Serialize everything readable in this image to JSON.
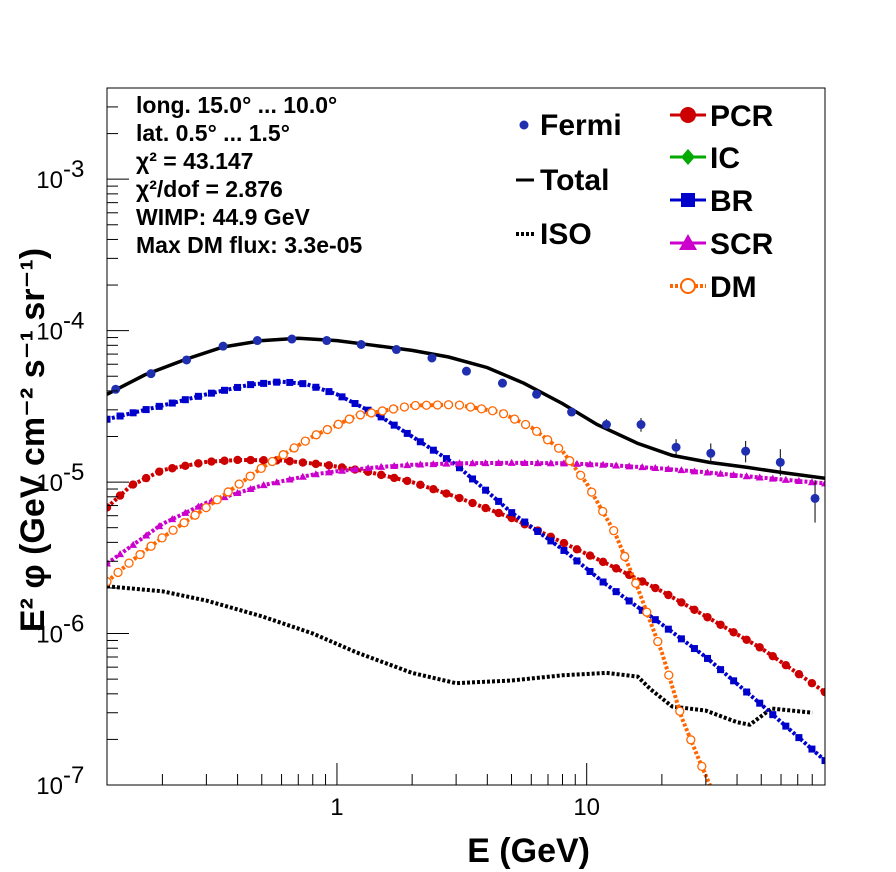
{
  "chart_data": {
    "type": "line",
    "xlabel": "E (GeV)",
    "ylabel": "E² φ (GeV cm⁻² s⁻¹ sr⁻¹)",
    "xscale": "log",
    "yscale": "log",
    "xlim": [
      0.12,
      90
    ],
    "ylim": [
      1e-07,
      0.004
    ],
    "x_tick_labels": [
      {
        "value": 1,
        "label": "1"
      },
      {
        "value": 10,
        "label": "10"
      }
    ],
    "y_tick_labels": [
      {
        "value": 1e-07,
        "base": "10",
        "exp": "-7"
      },
      {
        "value": 1e-06,
        "base": "10",
        "exp": "-6"
      },
      {
        "value": 1e-05,
        "base": "10",
        "exp": "-5"
      },
      {
        "value": 0.0001,
        "base": "10",
        "exp": "-4"
      },
      {
        "value": 0.001,
        "base": "10",
        "exp": "-3"
      }
    ],
    "info_lines": [
      "long. 15.0° ... 10.0°",
      "lat. 0.5° ... 1.5°",
      "χ² = 43.147",
      "χ²/dof = 2.876",
      "WIMP: 44.9 GeV",
      "Max DM flux: 3.3e-05"
    ],
    "legend_left": [
      {
        "name": "Fermi",
        "color": "#1f2fb0",
        "marker": "dot"
      },
      {
        "name": "Total",
        "color": "#000000",
        "marker": "line"
      },
      {
        "name": "ISO",
        "color": "#000000",
        "marker": "dotted"
      }
    ],
    "legend_right": [
      {
        "name": "PCR",
        "color": "#cc0000",
        "marker": "circle"
      },
      {
        "name": "IC",
        "color": "#00aa00",
        "marker": "diamond"
      },
      {
        "name": "BR",
        "color": "#0000cc",
        "marker": "square"
      },
      {
        "name": "SCR",
        "color": "#cc00cc",
        "marker": "triangle"
      },
      {
        "name": "DM",
        "color": "#ff6600",
        "marker": "open-circle"
      }
    ],
    "fermi_points": [
      {
        "x": 0.13,
        "y": 4.1e-05,
        "err_lo": 0,
        "err_hi": 0
      },
      {
        "x": 0.18,
        "y": 5.2e-05,
        "err_lo": 0,
        "err_hi": 0
      },
      {
        "x": 0.25,
        "y": 6.4e-05,
        "err_lo": 0,
        "err_hi": 0
      },
      {
        "x": 0.35,
        "y": 7.9e-05,
        "err_lo": 0,
        "err_hi": 0
      },
      {
        "x": 0.48,
        "y": 8.6e-05,
        "err_lo": 0,
        "err_hi": 0
      },
      {
        "x": 0.66,
        "y": 8.8e-05,
        "err_lo": 0,
        "err_hi": 0
      },
      {
        "x": 0.91,
        "y": 8.6e-05,
        "err_lo": 0,
        "err_hi": 0
      },
      {
        "x": 1.25,
        "y": 8.1e-05,
        "err_lo": 0,
        "err_hi": 0
      },
      {
        "x": 1.73,
        "y": 7.5e-05,
        "err_lo": 0,
        "err_hi": 0
      },
      {
        "x": 2.4,
        "y": 6.6e-05,
        "err_lo": 0,
        "err_hi": 0
      },
      {
        "x": 3.3,
        "y": 5.4e-05,
        "err_lo": 0,
        "err_hi": 0
      },
      {
        "x": 4.6,
        "y": 4.5e-05,
        "err_lo": 0,
        "err_hi": 0
      },
      {
        "x": 6.3,
        "y": 3.8e-05,
        "err_lo": 0,
        "err_hi": 0
      },
      {
        "x": 8.7,
        "y": 2.9e-05,
        "err_lo": 1.5e-06,
        "err_hi": 1.5e-06
      },
      {
        "x": 12.0,
        "y": 2.4e-05,
        "err_lo": 2e-06,
        "err_hi": 2e-06
      },
      {
        "x": 16.5,
        "y": 2.4e-05,
        "err_lo": 2.5e-06,
        "err_hi": 2.5e-06
      },
      {
        "x": 22.8,
        "y": 1.7e-05,
        "err_lo": 2e-06,
        "err_hi": 2.2e-06
      },
      {
        "x": 31.4,
        "y": 1.55e-05,
        "err_lo": 2.2e-06,
        "err_hi": 2.5e-06
      },
      {
        "x": 43.3,
        "y": 1.6e-05,
        "err_lo": 2.5e-06,
        "err_hi": 2.7e-06
      },
      {
        "x": 59.6,
        "y": 1.35e-05,
        "err_lo": 2.5e-06,
        "err_hi": 3e-06
      },
      {
        "x": 82.1,
        "y": 7.8e-06,
        "err_lo": 2.4e-06,
        "err_hi": 2.5e-06
      }
    ],
    "series": [
      {
        "name": "Total",
        "color": "#000000",
        "style": "solid",
        "x": [
          0.12,
          0.17,
          0.25,
          0.35,
          0.5,
          0.7,
          1.0,
          1.4,
          2.0,
          2.8,
          4.0,
          5.6,
          8.0,
          11,
          16,
          22,
          31,
          44,
          62,
          90
        ],
        "y": [
          3.8e-05,
          5.1e-05,
          6.5e-05,
          7.8e-05,
          8.6e-05,
          8.9e-05,
          8.6e-05,
          8e-05,
          7.4e-05,
          6.7e-05,
          5.7e-05,
          4.5e-05,
          3.3e-05,
          2.4e-05,
          1.8e-05,
          1.5e-05,
          1.35e-05,
          1.25e-05,
          1.15e-05,
          1.06e-05
        ]
      },
      {
        "name": "ISO",
        "color": "#000000",
        "style": "dotted",
        "x": [
          0.12,
          0.2,
          0.3,
          0.5,
          0.8,
          1.2,
          2.0,
          3.0,
          5.0,
          8.0,
          12,
          16,
          18,
          22,
          30,
          40,
          45,
          55,
          80
        ],
        "y": [
          2.05e-06,
          1.9e-06,
          1.65e-06,
          1.3e-06,
          1e-06,
          7.5e-07,
          5.5e-07,
          4.7e-07,
          4.9e-07,
          5.3e-07,
          5.5e-07,
          5.2e-07,
          4.3e-07,
          3.3e-07,
          3.1e-07,
          2.6e-07,
          2.5e-07,
          3.2e-07,
          3e-07
        ]
      },
      {
        "name": "PCR",
        "color": "#cc0000",
        "style": "markers",
        "x": [
          0.12,
          0.15,
          0.2,
          0.3,
          0.4,
          0.6,
          0.9,
          1.3,
          2.0,
          3.0,
          5.0,
          8.0,
          12,
          20,
          30,
          50,
          90
        ],
        "y": [
          6.8e-06,
          9.5e-06,
          1.2e-05,
          1.36e-05,
          1.4e-05,
          1.39e-05,
          1.3e-05,
          1.18e-05,
          1e-05,
          8e-06,
          5.8e-06,
          4e-06,
          2.9e-06,
          1.9e-06,
          1.3e-06,
          8e-07,
          4.1e-07
        ]
      },
      {
        "name": "BR",
        "color": "#0000cc",
        "style": "markers",
        "x": [
          0.12,
          0.2,
          0.3,
          0.45,
          0.6,
          0.75,
          1.0,
          1.5,
          2.0,
          3.0,
          5.0,
          8.0,
          12,
          20,
          30,
          50,
          90
        ],
        "y": [
          2.6e-05,
          3.2e-05,
          3.8e-05,
          4.4e-05,
          4.6e-05,
          4.45e-05,
          3.8e-05,
          2.7e-05,
          2e-05,
          1.3e-05,
          6.3e-06,
          3.6e-06,
          2.1e-06,
          1.15e-06,
          7e-07,
          3.4e-07,
          1.45e-07
        ]
      },
      {
        "name": "SCR",
        "color": "#cc00cc",
        "style": "markers",
        "x": [
          0.12,
          0.2,
          0.3,
          0.5,
          0.8,
          1.0,
          1.5,
          2.0,
          3.0,
          5.0,
          8.0,
          12,
          20,
          30,
          50,
          90
        ],
        "y": [
          2.9e-06,
          5.3e-06,
          7.3e-06,
          9.5e-06,
          1.12e-05,
          1.18e-05,
          1.26e-05,
          1.3e-05,
          1.33e-05,
          1.34e-05,
          1.33e-05,
          1.3e-05,
          1.23e-05,
          1.16e-05,
          1.07e-05,
          9.8e-06
        ]
      },
      {
        "name": "DM",
        "color": "#ff6600",
        "style": "open-markers",
        "x": [
          0.12,
          0.15,
          0.2,
          0.3,
          0.5,
          0.8,
          1.2,
          2.0,
          3.0,
          4.5,
          6.0,
          8.0,
          10,
          13,
          16,
          20,
          24,
          28,
          32
        ],
        "y": [
          2.2e-06,
          3e-06,
          4.3e-06,
          6.8e-06,
          1.24e-05,
          2e-05,
          2.75e-05,
          3.2e-05,
          3.25e-05,
          2.9e-05,
          2.3e-05,
          1.6e-05,
          9.8e-06,
          4.6e-06,
          2e-06,
          7.5e-07,
          2.8e-07,
          1.5e-07,
          9e-08
        ]
      }
    ]
  }
}
